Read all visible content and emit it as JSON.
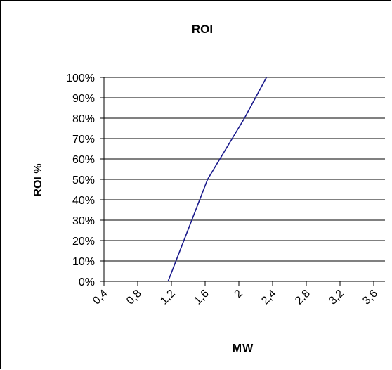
{
  "chart_data": {
    "type": "line",
    "title": "ROI",
    "xlabel": "MW",
    "ylabel": "ROI %",
    "x_ticks": [
      "0,4",
      "0,8",
      "1,2",
      "1,6",
      "2",
      "2,4",
      "2,8",
      "3,2",
      "3,6"
    ],
    "y_ticks": [
      "0%",
      "10%",
      "20%",
      "30%",
      "40%",
      "50%",
      "60%",
      "70%",
      "80%",
      "90%",
      "100%"
    ],
    "xlim": [
      0.4,
      3.6
    ],
    "ylim": [
      0,
      100
    ],
    "grid": "horizontal",
    "legend": "none",
    "series": [
      {
        "x": [
          1.13,
          1.58,
          2.0,
          2.25
        ],
        "y": [
          0,
          50,
          80,
          100
        ]
      }
    ]
  },
  "colors": {
    "line": "#1a1a8c",
    "grid": "#000000",
    "frame": "#000000"
  }
}
